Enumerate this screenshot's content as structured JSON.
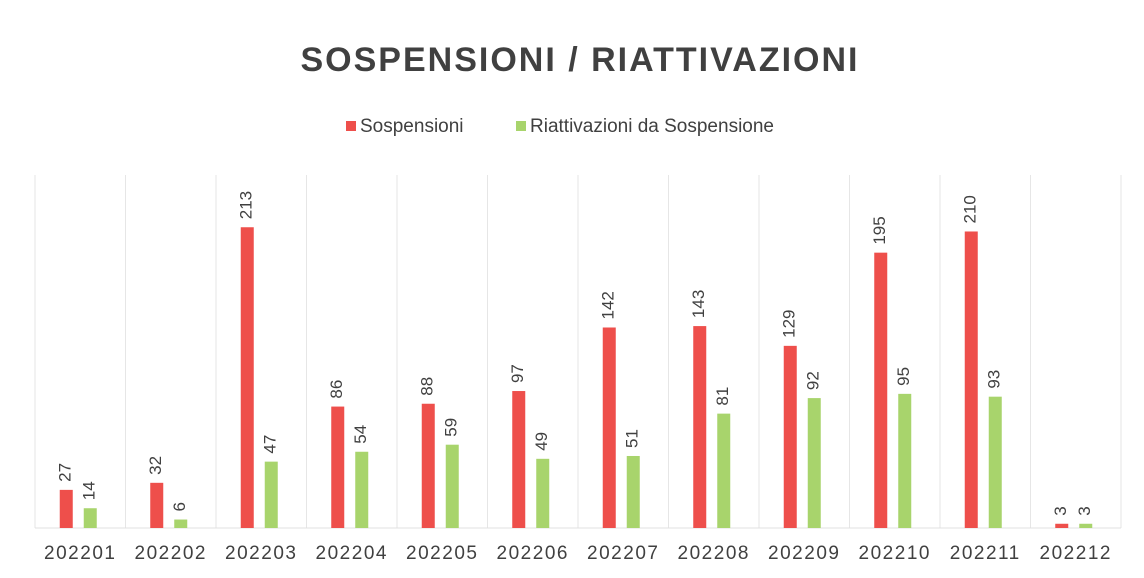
{
  "chart_data": {
    "type": "bar",
    "title": "SOSPENSIONI / RIATTIVAZIONI",
    "categories": [
      "202201",
      "202202",
      "202203",
      "202204",
      "202205",
      "202206",
      "202207",
      "202208",
      "202209",
      "202210",
      "202211",
      "202212"
    ],
    "series": [
      {
        "name": "Sospensioni",
        "color": "#ee4f4b",
        "values": [
          27,
          32,
          213,
          86,
          88,
          97,
          142,
          143,
          129,
          195,
          210,
          3
        ]
      },
      {
        "name": "Riattivazioni da Sospensione",
        "color": "#a8d46c",
        "values": [
          14,
          6,
          47,
          54,
          59,
          49,
          51,
          81,
          92,
          95,
          93,
          3
        ]
      }
    ],
    "ylim": [
      0,
      250
    ],
    "legend": "top",
    "data_labels": true
  }
}
